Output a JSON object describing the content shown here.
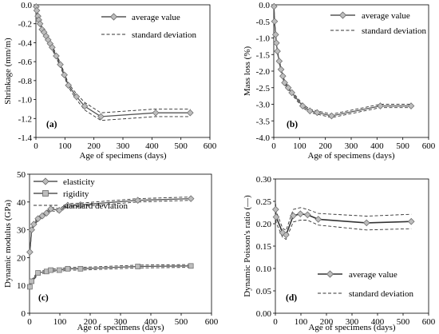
{
  "figure": {
    "panels": [
      {
        "id": "a",
        "panel_label": "(a)",
        "legend_entries": [
          "average value",
          "standard deviation"
        ],
        "xlabel": "Age of specimens (days)",
        "ylabel": "Shrinkage (mm/m)",
        "x_tick_labels": [
          "0",
          "100",
          "200",
          "300",
          "400",
          "500",
          "600"
        ],
        "y_tick_labels": [
          "0.0",
          "-0.2",
          "-0.4",
          "-0.6",
          "-0.8",
          "-1.0",
          "-1.2",
          "-1.4"
        ]
      },
      {
        "id": "b",
        "panel_label": "(b)",
        "legend_entries": [
          "average value",
          "standard deviation"
        ],
        "xlabel": "Age of specimens (days)",
        "ylabel": "Mass loss (%)",
        "x_tick_labels": [
          "0",
          "100",
          "200",
          "300",
          "400",
          "500",
          "600"
        ],
        "y_tick_labels": [
          "0.0",
          "-0.5",
          "-1.0",
          "-1.5",
          "-2.0",
          "-2.5",
          "-3.0",
          "-3.5",
          "-4.0"
        ]
      },
      {
        "id": "c",
        "panel_label": "(c)",
        "legend_entries": [
          "elasticity",
          "rigidity",
          "standard deviation"
        ],
        "xlabel": "Age of specimens (days)",
        "ylabel": "Dynamic modulus (GPa)",
        "x_tick_labels": [
          "0",
          "100",
          "200",
          "300",
          "400",
          "500",
          "600"
        ],
        "y_tick_labels": [
          "0",
          "10",
          "20",
          "30",
          "40",
          "50"
        ]
      },
      {
        "id": "d",
        "panel_label": "(d)",
        "legend_entries": [
          "average value",
          "standard deviation"
        ],
        "xlabel": "Age of specimens (days)",
        "ylabel": "Dynamic Poisson's ratio (—)",
        "x_tick_labels": [
          "0",
          "100",
          "200",
          "300",
          "400",
          "500",
          "600"
        ],
        "y_tick_labels": [
          "0.30",
          "0.25",
          "0.20",
          "0.15",
          "0.10",
          "0.05",
          "0.00"
        ]
      }
    ]
  },
  "chart_data": [
    {
      "type": "line",
      "panel": "(a)",
      "xlabel": "Age of specimens (days)",
      "ylabel": "Shrinkage (mm/m)",
      "xlim": [
        0,
        600
      ],
      "ylim": [
        -1.4,
        0.0
      ],
      "grid": false,
      "legend_position": "top-right",
      "series": [
        {
          "name": "average value",
          "style": "solid with diamond markers",
          "x": [
            1,
            3,
            7,
            10,
            14,
            21,
            28,
            35,
            42,
            49,
            56,
            70,
            84,
            98,
            112,
            140,
            168,
            224,
            413,
            532
          ],
          "y": [
            -0.02,
            -0.06,
            -0.12,
            -0.16,
            -0.2,
            -0.26,
            -0.29,
            -0.33,
            -0.37,
            -0.41,
            -0.45,
            -0.54,
            -0.63,
            -0.74,
            -0.85,
            -0.97,
            -1.07,
            -1.18,
            -1.14,
            -1.14
          ]
        },
        {
          "name": "standard deviation",
          "style": "dashed",
          "upper": [
            -0.01,
            -0.05,
            -0.1,
            -0.14,
            -0.18,
            -0.24,
            -0.27,
            -0.31,
            -0.35,
            -0.39,
            -0.43,
            -0.52,
            -0.61,
            -0.72,
            -0.83,
            -0.94,
            -1.03,
            -1.14,
            -1.1,
            -1.1
          ],
          "lower": [
            -0.03,
            -0.07,
            -0.14,
            -0.18,
            -0.22,
            -0.28,
            -0.31,
            -0.35,
            -0.39,
            -0.43,
            -0.47,
            -0.56,
            -0.65,
            -0.76,
            -0.87,
            -1.0,
            -1.11,
            -1.22,
            -1.18,
            -1.18
          ]
        }
      ]
    },
    {
      "type": "line",
      "panel": "(b)",
      "xlabel": "Age of specimens (days)",
      "ylabel": "Mass loss (%)",
      "xlim": [
        0,
        600
      ],
      "ylim": [
        -4.0,
        0.0
      ],
      "grid": false,
      "legend_position": "top-right",
      "series": [
        {
          "name": "average value",
          "style": "solid with diamond markers",
          "x": [
            1,
            3,
            7,
            10,
            14,
            21,
            28,
            35,
            42,
            56,
            70,
            112,
            140,
            168,
            224,
            413,
            532
          ],
          "y": [
            -0.05,
            -0.5,
            -0.9,
            -1.15,
            -1.4,
            -1.7,
            -1.95,
            -2.15,
            -2.35,
            -2.5,
            -2.65,
            -3.05,
            -3.2,
            -3.25,
            -3.35,
            -3.05,
            -3.05
          ]
        },
        {
          "name": "standard deviation",
          "style": "dashed",
          "upper": [
            -0.03,
            -0.45,
            -0.85,
            -1.1,
            -1.35,
            -1.65,
            -1.9,
            -2.1,
            -2.3,
            -2.45,
            -2.6,
            -3.0,
            -3.15,
            -3.2,
            -3.3,
            -3.0,
            -3.0
          ],
          "lower": [
            -0.07,
            -0.55,
            -0.95,
            -1.2,
            -1.45,
            -1.75,
            -2.0,
            -2.2,
            -2.4,
            -2.55,
            -2.7,
            -3.1,
            -3.25,
            -3.3,
            -3.4,
            -3.1,
            -3.1
          ]
        }
      ]
    },
    {
      "type": "line",
      "panel": "(c)",
      "xlabel": "Age of specimens (days)",
      "ylabel": "Dynamic modulus (GPa)",
      "xlim": [
        0,
        600
      ],
      "ylim": [
        0,
        50
      ],
      "grid": false,
      "legend_position": "top-left",
      "series": [
        {
          "name": "elasticity",
          "style": "solid with diamond markers",
          "x": [
            1,
            7,
            14,
            28,
            42,
            56,
            70,
            98,
            126,
            168,
            357,
            532
          ],
          "y": [
            22.0,
            30.0,
            32.0,
            34.0,
            35.0,
            36.0,
            37.5,
            37.0,
            38.8,
            39.0,
            40.6,
            41.2
          ]
        },
        {
          "name": "rigidity",
          "style": "solid with square markers",
          "x": [
            1,
            7,
            28,
            56,
            70,
            98,
            126,
            168,
            357,
            532
          ],
          "y": [
            9.5,
            11.5,
            14.5,
            15.0,
            15.5,
            15.5,
            16.0,
            16.0,
            16.8,
            17.0
          ]
        },
        {
          "name": "standard deviation",
          "style": "dashed",
          "elasticity_upper": [
            22.5,
            30.6,
            32.6,
            34.6,
            35.6,
            36.6,
            38.1,
            37.6,
            39.4,
            39.6,
            41.2,
            41.8
          ],
          "elasticity_lower": [
            21.5,
            29.4,
            31.4,
            33.4,
            34.4,
            35.4,
            36.9,
            36.4,
            38.2,
            38.4,
            40.0,
            40.6
          ],
          "rigidity_upper": [
            10.0,
            12.0,
            15.0,
            15.5,
            16.0,
            16.0,
            16.5,
            16.5,
            17.3,
            17.5
          ],
          "rigidity_lower": [
            9.0,
            11.0,
            14.0,
            14.5,
            15.0,
            15.0,
            15.5,
            15.5,
            16.3,
            16.5
          ]
        }
      ]
    },
    {
      "type": "line",
      "panel": "(d)",
      "xlabel": "Age of specimens (days)",
      "ylabel": "Dynamic Poisson's ratio (—)",
      "xlim": [
        0,
        600
      ],
      "ylim": [
        0.0,
        0.3
      ],
      "grid": false,
      "legend_position": "bottom-right",
      "series": [
        {
          "name": "average value",
          "style": "solid with diamond markers",
          "x": [
            1,
            3,
            28,
            42,
            70,
            98,
            126,
            168,
            357,
            532
          ],
          "y": [
            0.232,
            0.215,
            0.18,
            0.175,
            0.218,
            0.222,
            0.22,
            0.21,
            0.202,
            0.205
          ]
        },
        {
          "name": "standard deviation",
          "style": "dashed",
          "upper": [
            0.245,
            0.228,
            0.19,
            0.185,
            0.232,
            0.236,
            0.232,
            0.223,
            0.217,
            0.221
          ],
          "lower": [
            0.22,
            0.202,
            0.17,
            0.165,
            0.204,
            0.208,
            0.208,
            0.197,
            0.186,
            0.189
          ]
        }
      ]
    }
  ]
}
